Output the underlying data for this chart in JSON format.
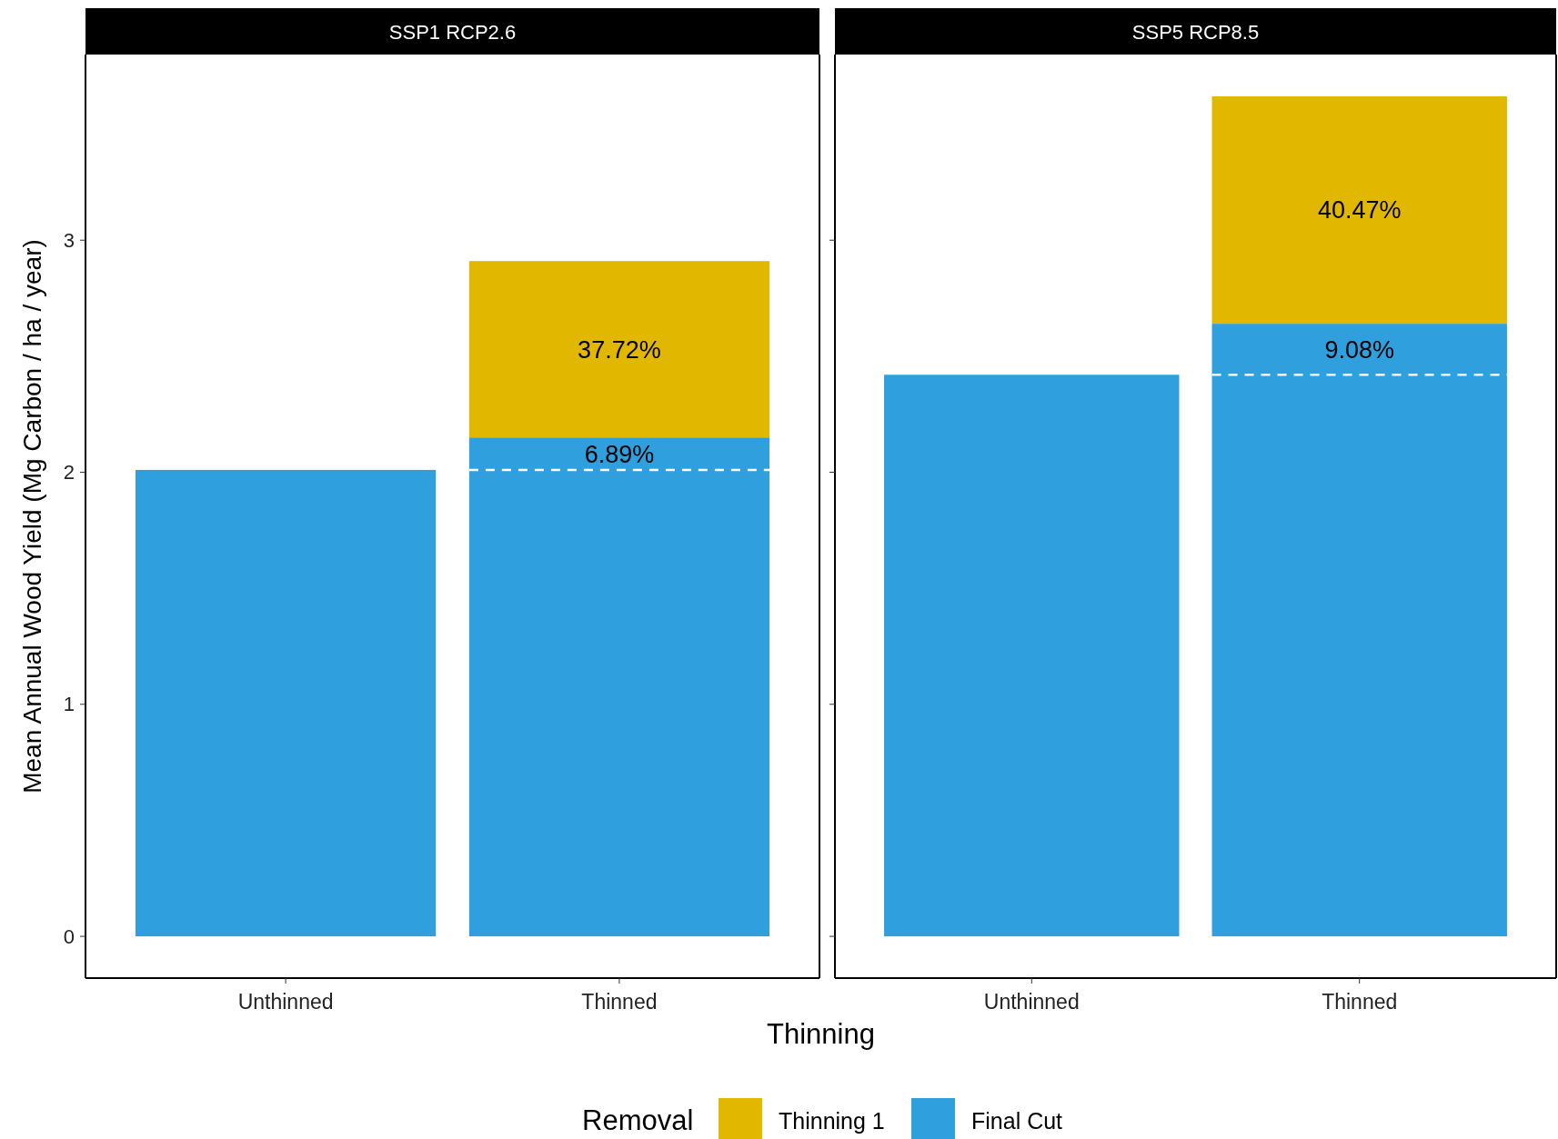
{
  "chart_data": [
    {
      "type": "bar",
      "title": "SSP1 RCP2.6",
      "xlabel": "Thinning",
      "ylabel": "Mean Annual Wood Yield (Mg Carbon / ha / year)",
      "legend_title": "Removal",
      "legend": "bottom",
      "stacked": true,
      "categories": [
        "Unthinned",
        "Thinned"
      ],
      "series": [
        {
          "name": "Final Cut",
          "color": "#2f9fdd",
          "values": [
            2.01,
            2.15
          ]
        },
        {
          "name": "Thinning 1",
          "color": "#e2b700",
          "values": [
            0,
            0.76
          ]
        }
      ],
      "ylim": [
        -0.18,
        3.8
      ],
      "yticks": [
        0,
        1,
        2,
        3
      ],
      "grid": false,
      "ref_lines": [
        {
          "axis": "y",
          "value": 2.01,
          "color": "#ffffff",
          "line_style": "dashed"
        }
      ],
      "annotations": [
        "37.72%",
        "6.89%"
      ]
    },
    {
      "type": "bar",
      "title": "SSP5 RCP8.5",
      "stacked": true,
      "categories": [
        "Unthinned",
        "Thinned"
      ],
      "tick_labels": "x",
      "series": [
        {
          "color": "#2f9fdd",
          "values": [
            2.42,
            2.64
          ]
        },
        {
          "color": "#e2b700",
          "values": [
            0,
            0.98
          ]
        }
      ],
      "ylim": [
        -0.18,
        3.8
      ],
      "yticks": [
        0,
        1,
        2,
        3
      ],
      "grid": false,
      "ref_lines": [
        {
          "axis": "y",
          "value": 2.42,
          "color": "#ffffff",
          "line_style": "dashed"
        }
      ],
      "annotations": [
        "40.47%",
        "9.08%"
      ]
    }
  ]
}
